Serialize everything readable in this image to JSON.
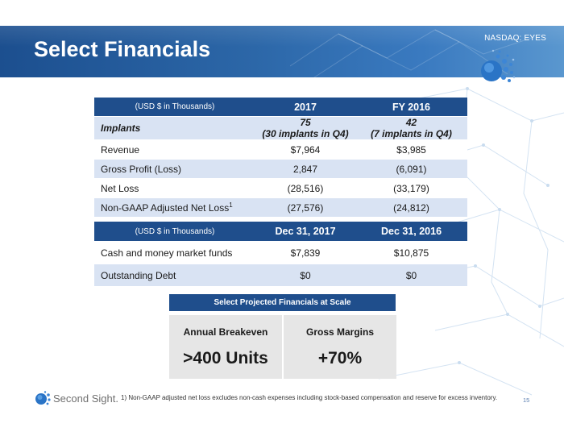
{
  "header": {
    "title": "Select Financials",
    "ticker": "NASDAQ: EYES"
  },
  "table_top": {
    "columns": [
      "(USD $ in Thousands)",
      "2017",
      "FY 2016"
    ],
    "implants": {
      "label": "Implants",
      "v2017_main": "75",
      "v2017_sub": "(30 implants in Q4)",
      "v2016_main": "42",
      "v2016_sub": "(7 implants in Q4)"
    },
    "rows": [
      {
        "label": "Revenue",
        "sup": "",
        "v2017": "$7,964",
        "v2016": "$3,985"
      },
      {
        "label": "Gross Profit (Loss)",
        "sup": "",
        "v2017": "2,847",
        "v2016": "(6,091)"
      },
      {
        "label": "Net Loss",
        "sup": "",
        "v2017": "(28,516)",
        "v2016": "(33,179)"
      },
      {
        "label": "Non-GAAP Adjusted Net Loss",
        "sup": "1",
        "v2017": "(27,576)",
        "v2016": "(24,812)"
      }
    ]
  },
  "table_bottom": {
    "columns": [
      "(USD $ in Thousands)",
      "Dec 31, 2017",
      "Dec 31, 2016"
    ],
    "rows": [
      {
        "label": "Cash and money market funds",
        "v2017": "$7,839",
        "v2016": "$10,875"
      },
      {
        "label": "Outstanding Debt",
        "v2017": "$0",
        "v2016": "$0"
      }
    ]
  },
  "projected": {
    "title": "Select Projected Financials at Scale",
    "items": [
      {
        "label": "Annual Breakeven",
        "value": ">400 Units"
      },
      {
        "label": "Gross Margins",
        "value": "+70%"
      }
    ]
  },
  "footer": {
    "company": "Second Sight.",
    "footnote": "1) Non-GAAP adjusted net loss excludes non-cash expenses including stock-based compensation and reserve for excess inventory.",
    "page": "15"
  },
  "colors": {
    "header_blue": "#2c67a8",
    "table_header": "#1f4e8c",
    "row_shade": "#d9e3f3",
    "box_gray": "#e6e6e6"
  },
  "icons": {
    "brand_mark": "dotted-sphere-logo-icon"
  }
}
